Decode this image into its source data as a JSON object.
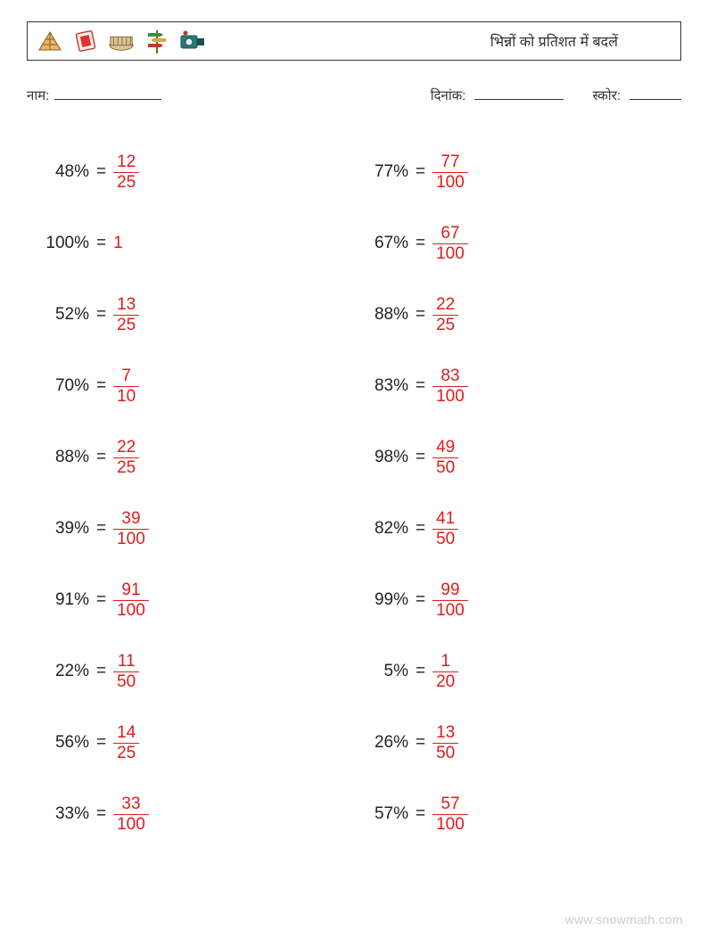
{
  "header": {
    "title": "भिन्नों को प्रतिशत में बदलें",
    "icons": [
      {
        "name": "pyramid-icon",
        "glyph": "pyramid"
      },
      {
        "name": "stamp-icon",
        "glyph": "stamp"
      },
      {
        "name": "colosseum-icon",
        "glyph": "colosseum"
      },
      {
        "name": "signpost-icon",
        "glyph": "signpost"
      },
      {
        "name": "camera-icon",
        "glyph": "camera"
      }
    ]
  },
  "info": {
    "name_label": "नाम:",
    "date_label": "दिनांक:",
    "score_label": "स्कोर:"
  },
  "style": {
    "answer_color": "#e21b1b",
    "text_color": "#222222",
    "body_font_size": 19
  },
  "problems": [
    {
      "col": 0,
      "percent": "48%",
      "is_fraction": true,
      "numerator": "12",
      "denominator": "25"
    },
    {
      "col": 1,
      "percent": "77%",
      "is_fraction": true,
      "numerator": "77",
      "denominator": "100"
    },
    {
      "col": 0,
      "percent": "100%",
      "is_fraction": false,
      "whole": "1"
    },
    {
      "col": 1,
      "percent": "67%",
      "is_fraction": true,
      "numerator": "67",
      "denominator": "100"
    },
    {
      "col": 0,
      "percent": "52%",
      "is_fraction": true,
      "numerator": "13",
      "denominator": "25"
    },
    {
      "col": 1,
      "percent": "88%",
      "is_fraction": true,
      "numerator": "22",
      "denominator": "25"
    },
    {
      "col": 0,
      "percent": "70%",
      "is_fraction": true,
      "numerator": "7",
      "denominator": "10"
    },
    {
      "col": 1,
      "percent": "83%",
      "is_fraction": true,
      "numerator": "83",
      "denominator": "100"
    },
    {
      "col": 0,
      "percent": "88%",
      "is_fraction": true,
      "numerator": "22",
      "denominator": "25"
    },
    {
      "col": 1,
      "percent": "98%",
      "is_fraction": true,
      "numerator": "49",
      "denominator": "50"
    },
    {
      "col": 0,
      "percent": "39%",
      "is_fraction": true,
      "numerator": "39",
      "denominator": "100"
    },
    {
      "col": 1,
      "percent": "82%",
      "is_fraction": true,
      "numerator": "41",
      "denominator": "50"
    },
    {
      "col": 0,
      "percent": "91%",
      "is_fraction": true,
      "numerator": "91",
      "denominator": "100"
    },
    {
      "col": 1,
      "percent": "99%",
      "is_fraction": true,
      "numerator": "99",
      "denominator": "100"
    },
    {
      "col": 0,
      "percent": "22%",
      "is_fraction": true,
      "numerator": "11",
      "denominator": "50"
    },
    {
      "col": 1,
      "percent": "5%",
      "is_fraction": true,
      "numerator": "1",
      "denominator": "20"
    },
    {
      "col": 0,
      "percent": "56%",
      "is_fraction": true,
      "numerator": "14",
      "denominator": "25"
    },
    {
      "col": 1,
      "percent": "26%",
      "is_fraction": true,
      "numerator": "13",
      "denominator": "50"
    },
    {
      "col": 0,
      "percent": "33%",
      "is_fraction": true,
      "numerator": "33",
      "denominator": "100"
    },
    {
      "col": 1,
      "percent": "57%",
      "is_fraction": true,
      "numerator": "57",
      "denominator": "100"
    }
  ],
  "footer": {
    "watermark": "www.snowmath.com"
  }
}
